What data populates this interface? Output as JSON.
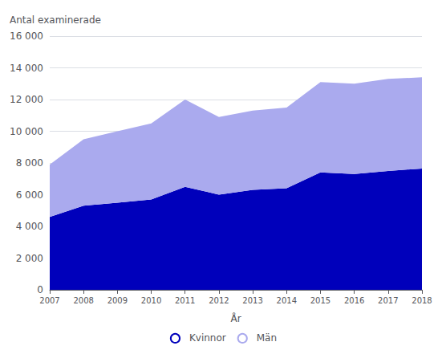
{
  "chart_data": {
    "type": "area",
    "stacked": true,
    "ylabel": "Antal examinerade",
    "xlabel": "År",
    "categories": [
      "2007",
      "2008",
      "2009",
      "2010",
      "2011",
      "2012",
      "2013",
      "2014",
      "2015",
      "2016",
      "2017",
      "2018"
    ],
    "series": [
      {
        "name": "Kvinnor",
        "color": "#0000bb",
        "values": [
          4600,
          5300,
          5500,
          5700,
          6500,
          6000,
          6300,
          6400,
          7400,
          7300,
          7500,
          7650
        ]
      },
      {
        "name": "Män",
        "color": "#aaaaee",
        "values": [
          3300,
          4200,
          4500,
          4800,
          5500,
          4900,
          5000,
          5100,
          5700,
          5700,
          5800,
          5750
        ]
      }
    ],
    "ylim": [
      0,
      16000
    ],
    "yticks": [
      0,
      {
        "value": 2000,
        "label": "2 000"
      },
      {
        "value": 4000,
        "label": "4 000"
      },
      {
        "value": 6000,
        "label": "6 000"
      },
      {
        "value": 8000,
        "label": "8 000"
      },
      {
        "value": 10000,
        "label": "10 000"
      },
      {
        "value": 12000,
        "label": "12 000"
      },
      {
        "value": 14000,
        "label": "14 000"
      },
      {
        "value": 16000,
        "label": "16 000"
      }
    ],
    "grid": true,
    "legend": "bottom"
  }
}
